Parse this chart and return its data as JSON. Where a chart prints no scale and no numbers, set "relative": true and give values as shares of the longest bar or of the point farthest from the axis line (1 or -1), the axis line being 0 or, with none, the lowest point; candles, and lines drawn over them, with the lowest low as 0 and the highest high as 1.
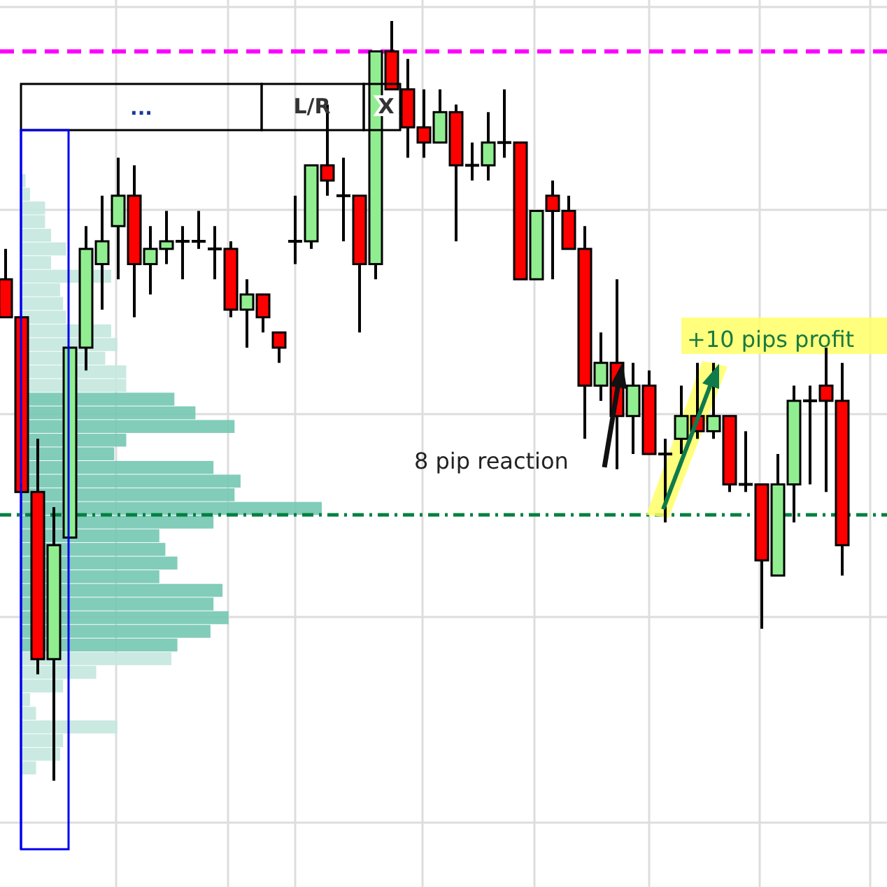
{
  "chart_data": [
    {
      "type": "candlestick",
      "relative": true,
      "grid": true,
      "categories": [
        null,
        null,
        null,
        null,
        null,
        null,
        null,
        null,
        null,
        null,
        null,
        null,
        null,
        null,
        null,
        null,
        null,
        null,
        null,
        null,
        null,
        null,
        null,
        null,
        null,
        null,
        null,
        null,
        null,
        null,
        null,
        null,
        null,
        null,
        null,
        null,
        null,
        null,
        null,
        null,
        null,
        null,
        null,
        null,
        null,
        null,
        null,
        null,
        null,
        null,
        null,
        null,
        null
      ],
      "ohlc": [
        [
          0.66,
          0.7,
          0.61,
          0.61
        ],
        [
          0.61,
          0.61,
          0.38,
          0.38
        ],
        [
          0.38,
          0.45,
          0.14,
          0.16
        ],
        [
          0.16,
          0.36,
          0,
          0.31
        ],
        [
          0.32,
          0.57,
          0.32,
          0.57
        ],
        [
          0.57,
          0.73,
          0.54,
          0.7
        ],
        [
          0.68,
          0.77,
          0.62,
          0.71
        ],
        [
          0.73,
          0.82,
          0.66,
          0.77
        ],
        [
          0.77,
          0.81,
          0.61,
          0.68
        ],
        [
          0.68,
          0.73,
          0.64,
          0.7
        ],
        [
          0.7,
          0.75,
          0.68,
          0.71
        ],
        [
          0.71,
          0.73,
          0.66,
          0.71
        ],
        [
          0.71,
          0.75,
          0.7,
          0.71
        ],
        [
          0.7,
          0.73,
          0.66,
          0.7
        ],
        [
          0.7,
          0.71,
          0.61,
          0.62
        ],
        [
          0.62,
          0.66,
          0.57,
          0.64
        ],
        [
          0.64,
          0.64,
          0.59,
          0.61
        ],
        [
          0.59,
          0.59,
          0.55,
          0.57
        ],
        [
          0.71,
          0.77,
          0.68,
          0.71
        ],
        [
          0.71,
          0.81,
          0.7,
          0.81
        ],
        [
          0.81,
          0.89,
          0.77,
          0.79
        ],
        [
          0.77,
          0.82,
          0.71,
          0.77
        ],
        [
          0.77,
          0.77,
          0.59,
          0.68
        ],
        [
          0.68,
          0.96,
          0.66,
          0.96
        ],
        [
          0.96,
          1,
          0.91,
          0.91
        ],
        [
          0.91,
          0.95,
          0.82,
          0.86
        ],
        [
          0.86,
          0.91,
          0.82,
          0.84
        ],
        [
          0.84,
          0.91,
          0.84,
          0.88
        ],
        [
          0.88,
          0.89,
          0.71,
          0.81
        ],
        [
          0.81,
          0.84,
          0.79,
          0.81
        ],
        [
          0.81,
          0.88,
          0.79,
          0.84
        ],
        [
          0.84,
          0.91,
          0.82,
          0.84
        ],
        [
          0.84,
          0.84,
          0.66,
          0.66
        ],
        [
          0.66,
          0.75,
          0.66,
          0.75
        ],
        [
          0.77,
          0.79,
          0.66,
          0.75
        ],
        [
          0.75,
          0.77,
          0.7,
          0.7
        ],
        [
          0.7,
          0.73,
          0.45,
          0.52
        ],
        [
          0.52,
          0.59,
          0.5,
          0.55
        ],
        [
          0.55,
          0.66,
          0.41,
          0.48
        ],
        [
          0.48,
          0.55,
          0.43,
          0.52
        ],
        [
          0.52,
          0.54,
          0.43,
          0.43
        ],
        [
          0.43,
          0.45,
          0.34,
          0.43
        ],
        [
          0.45,
          0.52,
          0.43,
          0.48
        ],
        [
          0.48,
          0.55,
          0.45,
          0.46
        ],
        [
          0.46,
          0.55,
          0.45,
          0.48
        ],
        [
          0.48,
          0.48,
          0.38,
          0.39
        ],
        [
          0.39,
          0.46,
          0.38,
          0.39
        ],
        [
          0.39,
          0.39,
          0.2,
          0.29
        ],
        [
          0.27,
          0.43,
          0.27,
          0.39
        ],
        [
          0.39,
          0.52,
          0.34,
          0.5
        ],
        [
          0.5,
          0.52,
          0.39,
          0.5
        ],
        [
          0.52,
          0.57,
          0.38,
          0.5
        ],
        [
          0.5,
          0.55,
          0.27,
          0.31
        ]
      ],
      "ref_lines": [
        {
          "axis": "y",
          "value": 0.96,
          "color": "#ff00ff",
          "line_style": "dashed"
        },
        {
          "axis": "y",
          "value": 0.35,
          "color": "#008040",
          "line_style": "dashdot"
        }
      ],
      "annotations": [
        "...",
        "L/R",
        "X",
        "8 pip reaction",
        "+10 pips profit"
      ]
    },
    {
      "type": "bar",
      "orientation": "horizontal",
      "relative": true,
      "grid": true,
      "categories": [
        null,
        null,
        null,
        null,
        null,
        null,
        null,
        null,
        null,
        null,
        null,
        null,
        null,
        null,
        null,
        null,
        null,
        null,
        null,
        null,
        null,
        null,
        null,
        null,
        null,
        null,
        null,
        null,
        null,
        null,
        null,
        null,
        null,
        null,
        null,
        null,
        null,
        null,
        null,
        null,
        null,
        null,
        null,
        null
      ],
      "values": [
        0.015,
        0.03,
        0.08,
        0.08,
        0.1,
        0.15,
        0.1,
        0.3,
        0.13,
        0.14,
        0.15,
        0.3,
        0.32,
        0.28,
        0.35,
        0.35,
        0.51,
        0.58,
        0.71,
        0.35,
        0.31,
        0.64,
        0.73,
        0.71,
        1,
        0.64,
        0.46,
        0.48,
        0.52,
        0.46,
        0.67,
        0.64,
        0.69,
        0.63,
        0.52,
        0.5,
        0.25,
        0.14,
        0.03,
        0.05,
        0.32,
        0.14,
        0.13,
        0.05
      ],
      "colors": [
        "#c3e7de",
        "#c3e7de",
        "#c3e7de",
        "#c3e7de",
        "#c3e7de",
        "#c3e7de",
        "#c3e7de",
        "#c3e7de",
        "#c3e7de",
        "#c3e7de",
        "#c3e7de",
        "#c3e7de",
        "#c3e7de",
        "#c3e7de",
        "#c3e7de",
        "#c3e7de",
        "#74c6b3",
        "#74c6b3",
        "#74c6b3",
        "#74c6b3",
        "#74c6b3",
        "#74c6b3",
        "#74c6b3",
        "#74c6b3",
        "#74c6b3",
        "#74c6b3",
        "#74c6b3",
        "#74c6b3",
        "#74c6b3",
        "#74c6b3",
        "#74c6b3",
        "#74c6b3",
        "#74c6b3",
        "#74c6b3",
        "#74c6b3",
        "#c3e7de",
        "#c3e7de",
        "#c3e7de",
        "#c3e7de",
        "#c3e7de",
        "#c3e7de",
        "#c3e7de",
        "#c3e7de",
        "#c3e7de"
      ]
    }
  ]
}
